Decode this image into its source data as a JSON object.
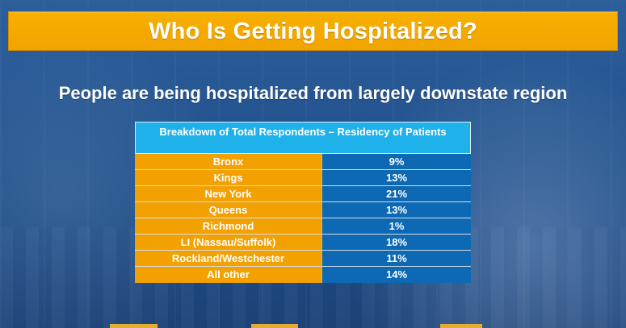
{
  "header": {
    "title": "Who Is Getting Hospitalized?"
  },
  "subtitle": "People are being hospitalized from largely downstate region",
  "table": {
    "title": "Breakdown of Total Respondents – Residency of Patients",
    "rows": [
      {
        "label": "Bronx",
        "value": "9%"
      },
      {
        "label": "Kings",
        "value": "13%"
      },
      {
        "label": "New York",
        "value": "21%"
      },
      {
        "label": "Queens",
        "value": "13%"
      },
      {
        "label": "Richmond",
        "value": "1%"
      },
      {
        "label": "LI (Nassau/Suffolk)",
        "value": "18%"
      },
      {
        "label": "Rockland/Westchester",
        "value": "11%"
      },
      {
        "label": "All other",
        "value": "14%"
      }
    ]
  },
  "colors": {
    "banner": "#F2A300",
    "table_header": "#1FB1EA",
    "left_column": "#F2A100",
    "right_column": "#0D69B3",
    "text": "#FFFFFF"
  }
}
